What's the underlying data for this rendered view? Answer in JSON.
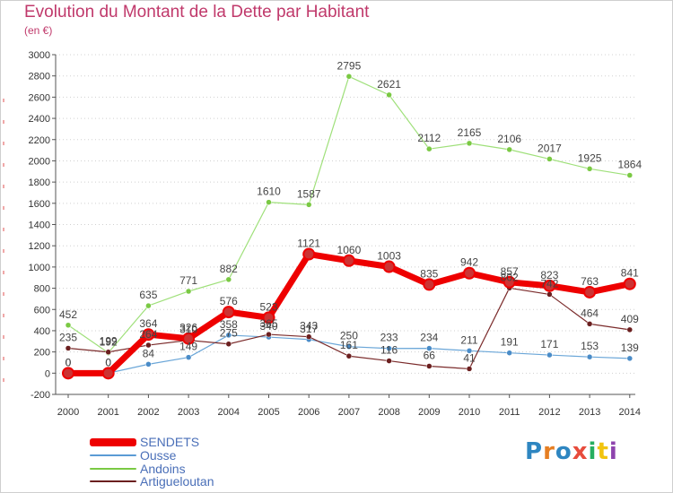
{
  "header": {
    "title": "Evolution du Montant de la Dette par Habitant",
    "subtitle": "(en €)"
  },
  "brand": {
    "logo_text": "Proxiti"
  },
  "chart_data": {
    "type": "line",
    "title": "Evolution du Montant de la Dette par Habitant",
    "subtitle": "(en €)",
    "xlabel": "",
    "ylabel": "",
    "ylim": [
      -200,
      3000
    ],
    "y_ticks": [
      -200,
      0,
      200,
      400,
      600,
      800,
      1000,
      1200,
      1400,
      1600,
      1800,
      2000,
      2200,
      2400,
      2600,
      2800,
      3000
    ],
    "x": [
      "2000",
      "2001",
      "2002",
      "2003",
      "2004",
      "2005",
      "2006",
      "2007",
      "2008",
      "2009",
      "2010",
      "2011",
      "2012",
      "2013",
      "2014"
    ],
    "grid": "horizontal dotted",
    "legend_position": "bottom-left",
    "series": [
      {
        "name": "SENDETS",
        "color": "#ee0000",
        "values": [
          0,
          0,
          364,
          326,
          576,
          523,
          1121,
          1060,
          1003,
          835,
          942,
          857,
          823,
          763,
          841
        ]
      },
      {
        "name": "Ousse",
        "color": "#5b9bd5",
        "values": [
          0,
          0,
          84,
          149,
          358,
          340,
          317,
          250,
          233,
          234,
          211,
          191,
          171,
          153,
          139
        ]
      },
      {
        "name": "Andoins",
        "color": "#7ac943",
        "values": [
          452,
          192,
          635,
          771,
          882,
          1610,
          1587,
          2795,
          2621,
          2112,
          2165,
          2106,
          2017,
          1925,
          1864
        ]
      },
      {
        "name": "Artigueloutan",
        "color": "#6b1f1f",
        "values": [
          235,
          199,
          264,
          310,
          275,
          365,
          343,
          161,
          116,
          66,
          41,
          802,
          742,
          464,
          409
        ]
      }
    ]
  }
}
